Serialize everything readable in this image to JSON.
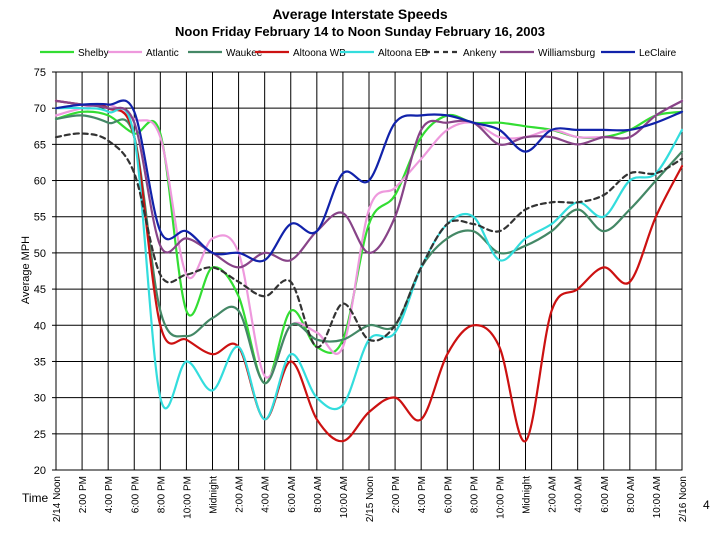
{
  "page_number": "4",
  "chart_data": {
    "type": "line",
    "title": "Average Interstate Speeds",
    "subtitle": "Noon Friday February 14 to Noon Sunday February 16, 2003",
    "ylabel": "Average MPH",
    "xlabel": "Time",
    "ylim": [
      20,
      75
    ],
    "yticks": [
      20,
      25,
      30,
      35,
      40,
      45,
      50,
      55,
      60,
      65,
      70,
      75
    ],
    "grid": true,
    "legend_position": "top",
    "x": [
      0,
      2,
      4,
      6,
      8,
      10,
      12,
      14,
      16,
      18,
      20,
      22,
      24,
      26,
      28,
      30,
      32,
      34,
      36,
      38,
      40,
      42,
      44,
      46,
      48
    ],
    "categories": [
      "2/14 Noon",
      "2:00 PM",
      "4:00 PM",
      "6:00 PM",
      "8:00 PM",
      "10:00 PM",
      "Midnight",
      "2:00 AM",
      "4:00 AM",
      "6:00 AM",
      "8:00 AM",
      "10:00 AM",
      "2/15 Noon",
      "2:00 PM",
      "4:00 PM",
      "6:00 PM",
      "8:00 PM",
      "10:00 PM",
      "Midnight",
      "2:00 AM",
      "4:00 AM",
      "6:00 AM",
      "8:00 AM",
      "10:00 AM",
      "2/16 Noon"
    ],
    "series": [
      {
        "name": "Shelby",
        "color": "#33dd33",
        "dash": "",
        "values": [
          68.5,
          69.5,
          69,
          66.5,
          66.5,
          42,
          48,
          44,
          32,
          42,
          37,
          38,
          54,
          58,
          66,
          69,
          68,
          68,
          67.5,
          67,
          66,
          66,
          67,
          69,
          69.5
        ]
      },
      {
        "name": "Atlantic",
        "color": "#ee99dd",
        "dash": "",
        "values": [
          69,
          70,
          70.5,
          68.5,
          66,
          47,
          52,
          50,
          33,
          40,
          39,
          37,
          56,
          59,
          63,
          67,
          68,
          66,
          66,
          67,
          66,
          66,
          66,
          69,
          71
        ]
      },
      {
        "name": "Waukee",
        "color": "#448866",
        "dash": "",
        "values": [
          68.5,
          69,
          68,
          66,
          42,
          38.5,
          41,
          42,
          32,
          40,
          38,
          38,
          40,
          40,
          48,
          52,
          53,
          50,
          51,
          53,
          56,
          53,
          56,
          60,
          64
        ]
      },
      {
        "name": "Altoona WB",
        "color": "#cc1111",
        "dash": "",
        "values": [
          71,
          70.5,
          70,
          66,
          40,
          38,
          36,
          37,
          27,
          35,
          27,
          24,
          28,
          30,
          27,
          36,
          40,
          37,
          24,
          42,
          45,
          48,
          46,
          55,
          62
        ]
      },
      {
        "name": "Altoona EB",
        "color": "#33dddd",
        "dash": "",
        "values": [
          70,
          70,
          69.5,
          66,
          30,
          35,
          31,
          37,
          27,
          36,
          30,
          29,
          38,
          39,
          48,
          54,
          55,
          49,
          52,
          54,
          57,
          55,
          60,
          61,
          67
        ]
      },
      {
        "name": "Ankeny",
        "color": "#333333",
        "dash": "5,4",
        "values": [
          66,
          66.5,
          65.5,
          61,
          47,
          47,
          48,
          46,
          44,
          46,
          37,
          43,
          38,
          40,
          48,
          54,
          54,
          53,
          56,
          57,
          57,
          58,
          61,
          61,
          63
        ]
      },
      {
        "name": "Williamsburg",
        "color": "#884488",
        "dash": "",
        "values": [
          71,
          70.5,
          70,
          68,
          51,
          52,
          50,
          48,
          50,
          49,
          53,
          55.5,
          50,
          55,
          67,
          68,
          68,
          65,
          66,
          66,
          65,
          66,
          66,
          69,
          71
        ]
      },
      {
        "name": "LeClaire",
        "color": "#1122aa",
        "dash": "",
        "values": [
          70,
          70.5,
          70.5,
          69.5,
          53,
          53,
          50,
          50,
          49,
          54,
          53,
          61,
          60,
          68,
          69,
          69,
          68,
          67,
          64,
          67,
          67,
          67,
          67,
          68,
          69.5
        ]
      }
    ]
  }
}
